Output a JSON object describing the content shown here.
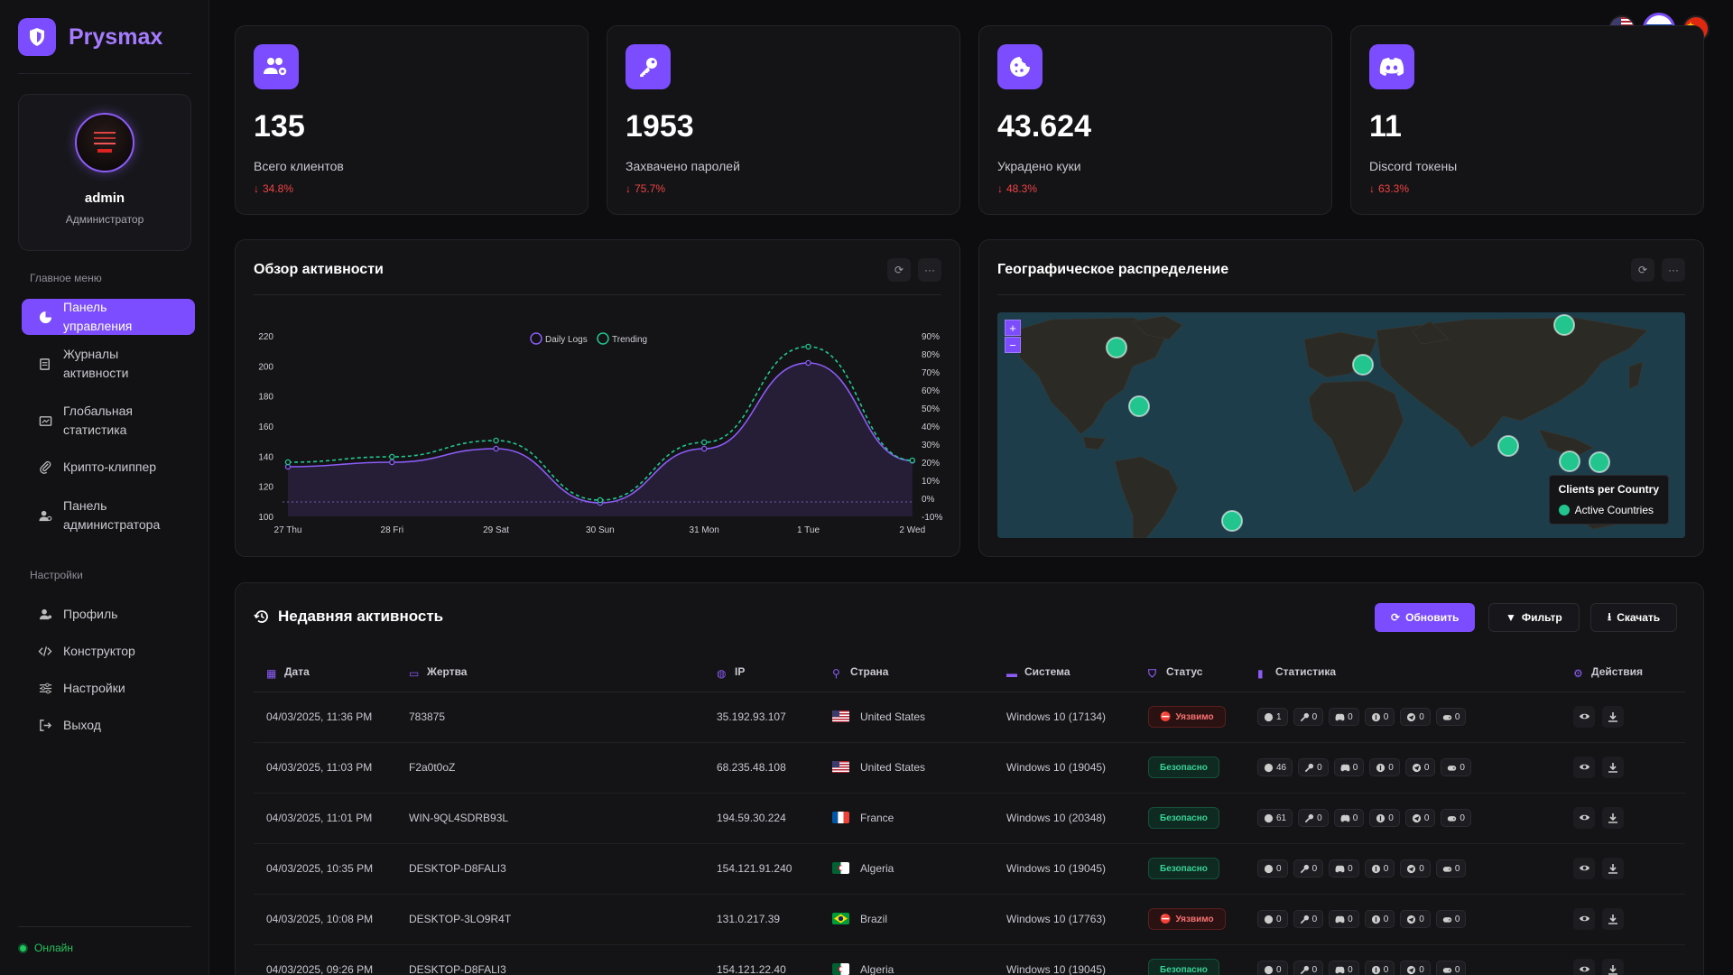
{
  "brand": {
    "name": "Prysmax"
  },
  "user": {
    "name": "admin",
    "role": "Администратор"
  },
  "nav": {
    "main_title": "Главное меню",
    "main_items": [
      {
        "label": "Панель управления",
        "icon": "dashboard-icon",
        "active": true
      },
      {
        "label": "Журналы активности",
        "icon": "logs-icon"
      },
      {
        "label": "Глобальная статистика",
        "icon": "stats-icon"
      },
      {
        "label": "Крипто-клиппер",
        "icon": "paperclip-icon"
      },
      {
        "label": "Панель администратора",
        "icon": "admin-icon"
      }
    ],
    "settings_title": "Настройки",
    "settings_items": [
      {
        "label": "Профиль",
        "icon": "user-icon"
      },
      {
        "label": "Конструктор",
        "icon": "code-icon"
      },
      {
        "label": "Настройки",
        "icon": "sliders-icon"
      },
      {
        "label": "Выход",
        "icon": "logout-icon"
      }
    ],
    "status": "Онлайн"
  },
  "stats": [
    {
      "value": "135",
      "label": "Всего клиентов",
      "change": "34.8%",
      "icon": "users-gear-icon"
    },
    {
      "value": "1953",
      "label": "Захвачено паролей",
      "change": "75.7%",
      "icon": "key-icon"
    },
    {
      "value": "43.624",
      "label": "Украдено куки",
      "change": "48.3%",
      "icon": "cookie-icon"
    },
    {
      "value": "11",
      "label": "Discord токены",
      "change": "63.3%",
      "icon": "discord-icon"
    }
  ],
  "activity": {
    "title": "Обзор активности"
  },
  "geo": {
    "title": "Географическое распределение",
    "legend_title": "Clients per Country",
    "legend_item": "Active Countries",
    "zoom_in": "+",
    "zoom_out": "−"
  },
  "chart_data": {
    "type": "line",
    "categories": [
      "27 Thu",
      "28 Fri",
      "29 Sat",
      "30 Sun",
      "31 Mon",
      "1 Tue",
      "2 Wed"
    ],
    "series": [
      {
        "name": "Daily Logs",
        "axis": "left",
        "values": [
          133,
          136,
          145,
          109,
          145,
          202,
          137
        ],
        "color": "#8b5cf6"
      },
      {
        "name": "Trending",
        "axis": "right",
        "values": [
          20,
          23,
          32,
          -1,
          31,
          84,
          21
        ],
        "color": "#22c58e"
      }
    ],
    "ylim": [
      100,
      220
    ],
    "yticks": [
      100,
      120,
      140,
      160,
      180,
      200,
      220
    ],
    "y2lim": [
      -10,
      90
    ],
    "y2ticks": [
      "-10%",
      "0%",
      "10%",
      "20%",
      "30%",
      "40%",
      "50%",
      "60%",
      "70%",
      "80%",
      "90%"
    ],
    "legend": "top-center"
  },
  "recent": {
    "title": "Недавняя активность",
    "buttons": {
      "refresh": "Обновить",
      "filter": "Фильтр",
      "download": "Скачать"
    },
    "columns": [
      "Дата",
      "Жертва",
      "IP",
      "Страна",
      "Система",
      "Статус",
      "Статистика",
      "Действия"
    ],
    "rows": [
      {
        "date": "04/03/2025, 11:36 PM",
        "victim": "783875",
        "ip": "35.192.93.107",
        "country": "United States",
        "flag": "us",
        "system": "Windows 10 (17134)",
        "status": "Уязвимо",
        "status_type": "danger",
        "stats": [
          "1",
          "0",
          "0",
          "0",
          "0",
          "0"
        ]
      },
      {
        "date": "04/03/2025, 11:03 PM",
        "victim": "F2a0t0oZ",
        "ip": "68.235.48.108",
        "country": "United States",
        "flag": "us",
        "system": "Windows 10 (19045)",
        "status": "Безопасно",
        "status_type": "safe",
        "stats": [
          "46",
          "0",
          "0",
          "0",
          "0",
          "0"
        ]
      },
      {
        "date": "04/03/2025, 11:01 PM",
        "victim": "WIN-9QL4SDRB93L",
        "ip": "194.59.30.224",
        "country": "France",
        "flag": "fr",
        "system": "Windows 10 (20348)",
        "status": "Безопасно",
        "status_type": "safe",
        "stats": [
          "61",
          "0",
          "0",
          "0",
          "0",
          "0"
        ]
      },
      {
        "date": "04/03/2025, 10:35 PM",
        "victim": "DESKTOP-D8FALI3",
        "ip": "154.121.91.240",
        "country": "Algeria",
        "flag": "dz",
        "system": "Windows 10 (19045)",
        "status": "Безопасно",
        "status_type": "safe",
        "stats": [
          "0",
          "0",
          "0",
          "0",
          "0",
          "0"
        ]
      },
      {
        "date": "04/03/2025, 10:08 PM",
        "victim": "DESKTOP-3LO9R4T",
        "ip": "131.0.217.39",
        "country": "Brazil",
        "flag": "br",
        "system": "Windows 10 (17763)",
        "status": "Уязвимо",
        "status_type": "danger",
        "stats": [
          "0",
          "0",
          "0",
          "0",
          "0",
          "0"
        ]
      },
      {
        "date": "04/03/2025, 09:26 PM",
        "victim": "DESKTOP-D8FALI3",
        "ip": "154.121.22.40",
        "country": "Algeria",
        "flag": "dz",
        "system": "Windows 10 (19045)",
        "status": "Безопасно",
        "status_type": "safe",
        "stats": [
          "0",
          "0",
          "0",
          "0",
          "0",
          "0"
        ]
      }
    ]
  },
  "languages": [
    "us-flag-icon",
    "ru-flag-icon",
    "cn-flag-icon"
  ],
  "colors": {
    "accent": "#7c4dff",
    "danger": "#ef4444",
    "safe": "#22c58e"
  }
}
